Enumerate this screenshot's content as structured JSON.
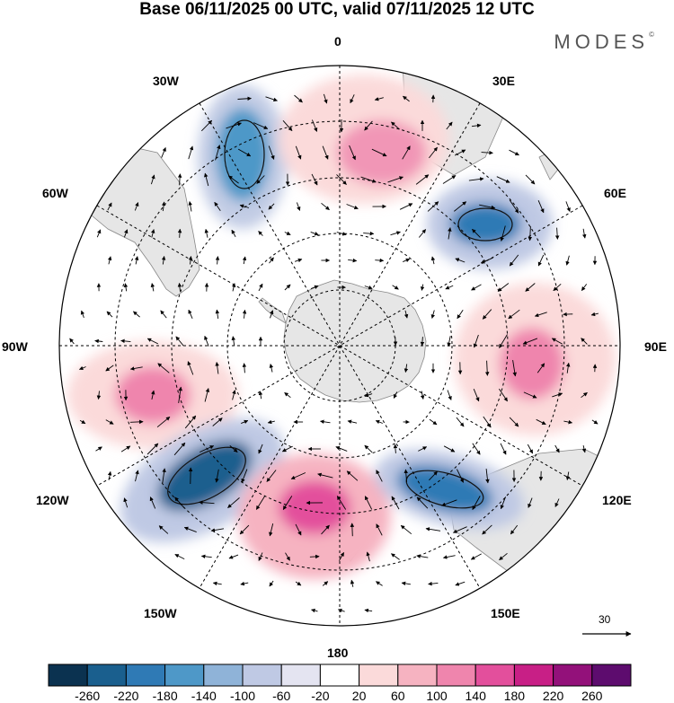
{
  "title": "Base 06/11/2025 00 UTC, valid 07/11/2025 12 UTC",
  "brand": "MODES",
  "brand_mark": "©",
  "lon_labels": {
    "n0": "0",
    "e30": "30E",
    "e60": "60E",
    "e90": "90E",
    "e120": "120E",
    "e150": "150E",
    "s180": "180",
    "w150": "150W",
    "w120": "120W",
    "w90": "90W",
    "w60": "60W",
    "w30": "30W"
  },
  "vector_scale": {
    "label": "30"
  },
  "colorbar": {
    "colors": [
      "#0b3250",
      "#1a5f8e",
      "#2f7ab5",
      "#4e98c8",
      "#8fb3d8",
      "#bfc9e4",
      "#e4e4f1",
      "#ffffff",
      "#fbdada",
      "#f6b3c1",
      "#ef85ad",
      "#e34f9c",
      "#c81f86",
      "#93117a",
      "#5d0c6e"
    ],
    "labels": [
      "-260",
      "-220",
      "-180",
      "-140",
      "-100",
      "-60",
      "-20",
      "20",
      "60",
      "100",
      "140",
      "180",
      "220",
      "260"
    ]
  },
  "colors": {
    "land": "#e6e6e6",
    "coast": "#888888",
    "frame": "#000000"
  }
}
